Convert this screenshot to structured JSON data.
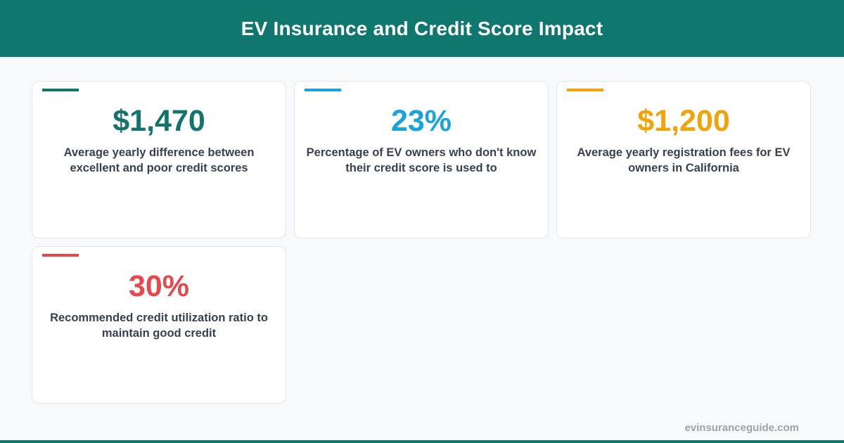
{
  "header": {
    "title": "EV Insurance and Credit Score Impact"
  },
  "colors": {
    "header_bg": "#10776f",
    "teal": "#14736b",
    "blue": "#1aa3d9",
    "orange": "#f0a30a",
    "red": "#e5484d"
  },
  "cards": [
    {
      "value": "$1,470",
      "description": "Average yearly difference between excellent and poor credit scores",
      "color": "#14736b"
    },
    {
      "value": "23%",
      "description": "Percentage of EV owners who don't know their credit score is used to",
      "color": "#1aa3d9"
    },
    {
      "value": "$1,200",
      "description": "Average yearly registration fees for EV owners in California",
      "color": "#f0a30a"
    },
    {
      "value": "30%",
      "description": "Recommended credit utilization ratio to maintain good credit",
      "color": "#e5484d"
    }
  ],
  "footer": {
    "site": "evinsuranceguide.com"
  }
}
